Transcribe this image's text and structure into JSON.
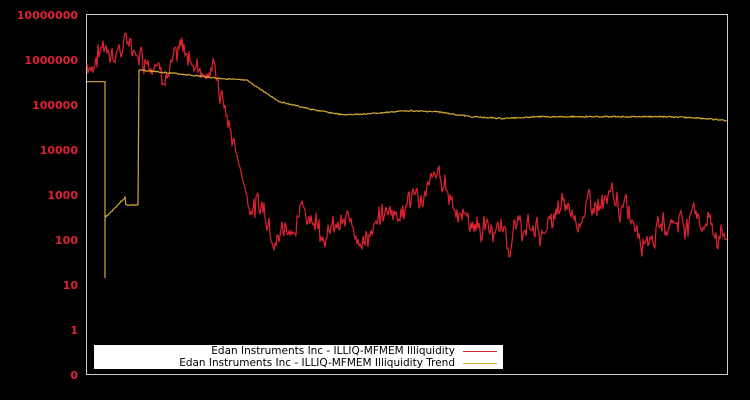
{
  "chart_data": {
    "type": "line",
    "title": "",
    "xlabel": "",
    "ylabel": "",
    "yscale": "log",
    "ylim": [
      0,
      10000000
    ],
    "grid": false,
    "legend_position": "bottom-left inside plot",
    "ytick_labels": [
      "10000000",
      "1000000",
      "100000",
      "10000",
      "1000",
      "100",
      "10",
      "1",
      "0"
    ],
    "xtick_labels": [],
    "x_index": [
      0,
      3,
      8,
      14,
      20,
      25,
      30,
      35,
      40,
      45,
      50,
      55,
      60,
      65,
      70,
      75,
      80,
      85,
      90,
      95,
      100
    ],
    "series": [
      {
        "name": "Edan Instruments Inc - ILLIQ-MFMEM Illiquidity",
        "color": "#dd2233",
        "values": [
          800000,
          2500000,
          2000000,
          1200000,
          700000,
          1000,
          300,
          500,
          150,
          200,
          800,
          1500,
          300,
          150,
          150,
          300,
          500,
          300,
          250,
          400,
          150
        ]
      },
      {
        "name": "Edan Instruments Inc - ILLIQ-MFMEM Illiquidity Trend",
        "color": "#d4aa33",
        "values": [
          330000,
          330000,
          600000,
          500000,
          400000,
          350000,
          120000,
          80000,
          60000,
          65000,
          75000,
          70000,
          55000,
          50000,
          55000,
          55000,
          55000,
          55000,
          55000,
          52000,
          45000
        ]
      }
    ]
  },
  "axis": {
    "y_labels": [
      "10000000",
      "1000000",
      "100000",
      "10000",
      "1000",
      "100",
      "10",
      "1",
      "0"
    ]
  },
  "legend": {
    "items": [
      {
        "label": "Edan Instruments Inc - ILLIQ-MFMEM Illiquidity",
        "color": "#dd2233"
      },
      {
        "label": "Edan Instruments Inc - ILLIQ-MFMEM Illiquidity Trend",
        "color": "#d4aa33"
      }
    ]
  }
}
